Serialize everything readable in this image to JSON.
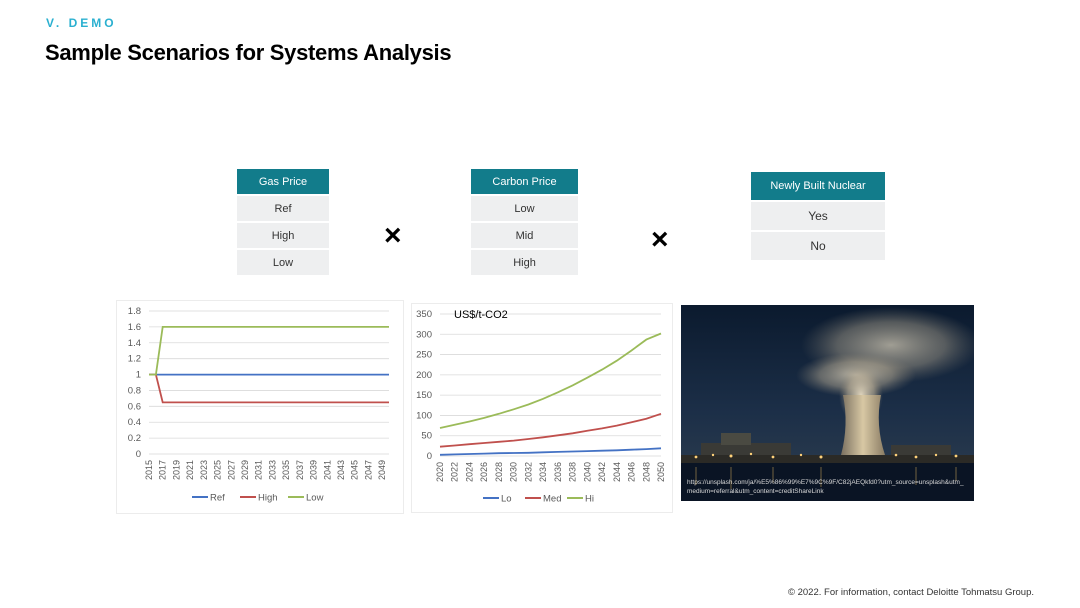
{
  "header": {
    "section": "V. DEMO",
    "title": "Sample Scenarios for Systems Analysis"
  },
  "scenario_tables": [
    {
      "header": "Gas Price",
      "rows": [
        "Ref",
        "High",
        "Low"
      ]
    },
    {
      "header": "Carbon Price",
      "rows": [
        "Low",
        "Mid",
        "High"
      ]
    },
    {
      "header": "Newly Built Nuclear",
      "rows": [
        "Yes",
        "No"
      ]
    }
  ],
  "operators": [
    "×",
    "×"
  ],
  "photo": {
    "credit": "https://unsplash.com/ja/%E5%86%99%E7%9C%9F/C82jAEQkfd0?utm_source=unsplash&utm_medium=referral&utm_content=creditShareLink"
  },
  "footer": "© 2022. For information, contact Deloitte Tohmatsu Group.",
  "chart_data": [
    {
      "type": "line",
      "title": "",
      "x": [
        2015,
        2016,
        2017,
        2018,
        2019,
        2020,
        2021,
        2022,
        2023,
        2024,
        2025,
        2026,
        2027,
        2028,
        2029,
        2030,
        2031,
        2032,
        2033,
        2034,
        2035,
        2036,
        2037,
        2038,
        2039,
        2040,
        2041,
        2042,
        2043,
        2044,
        2045,
        2046,
        2047,
        2048,
        2049,
        2050
      ],
      "x_tick_labels": [
        "2015",
        "2017",
        "2019",
        "2021",
        "2023",
        "2025",
        "2027",
        "2029",
        "2031",
        "2033",
        "2035",
        "2037",
        "2039",
        "2041",
        "2043",
        "2045",
        "2047",
        "2049"
      ],
      "ylim": [
        0,
        1.8
      ],
      "y_ticks": [
        "0",
        "0.2",
        "0.4",
        "0.6",
        "0.8",
        "1",
        "1.2",
        "1.4",
        "1.6",
        "1.8"
      ],
      "grid": true,
      "legend": "bottom",
      "series": [
        {
          "name": "Ref",
          "color": "#4472C4",
          "values": [
            1,
            1,
            1,
            1,
            1,
            1,
            1,
            1,
            1,
            1,
            1,
            1,
            1,
            1,
            1,
            1,
            1,
            1,
            1,
            1,
            1,
            1,
            1,
            1,
            1,
            1,
            1,
            1,
            1,
            1,
            1,
            1,
            1,
            1,
            1,
            1
          ]
        },
        {
          "name": "High",
          "color": "#C0504D",
          "values": [
            1,
            1,
            0.65,
            0.65,
            0.65,
            0.65,
            0.65,
            0.65,
            0.65,
            0.65,
            0.65,
            0.65,
            0.65,
            0.65,
            0.65,
            0.65,
            0.65,
            0.65,
            0.65,
            0.65,
            0.65,
            0.65,
            0.65,
            0.65,
            0.65,
            0.65,
            0.65,
            0.65,
            0.65,
            0.65,
            0.65,
            0.65,
            0.65,
            0.65,
            0.65,
            0.65
          ]
        },
        {
          "name": "Low",
          "color": "#9BBB59",
          "values": [
            1,
            1,
            1.6,
            1.6,
            1.6,
            1.6,
            1.6,
            1.6,
            1.6,
            1.6,
            1.6,
            1.6,
            1.6,
            1.6,
            1.6,
            1.6,
            1.6,
            1.6,
            1.6,
            1.6,
            1.6,
            1.6,
            1.6,
            1.6,
            1.6,
            1.6,
            1.6,
            1.6,
            1.6,
            1.6,
            1.6,
            1.6,
            1.6,
            1.6,
            1.6,
            1.6
          ]
        }
      ]
    },
    {
      "type": "line",
      "title": "US$/t-CO2",
      "x": [
        2020,
        2022,
        2024,
        2026,
        2028,
        2030,
        2032,
        2034,
        2036,
        2038,
        2040,
        2042,
        2044,
        2046,
        2048,
        2050
      ],
      "x_tick_labels": [
        "2020",
        "2022",
        "2024",
        "2026",
        "2028",
        "2030",
        "2032",
        "2034",
        "2036",
        "2038",
        "2040",
        "2042",
        "2044",
        "2046",
        "2048",
        "2050"
      ],
      "ylim": [
        0,
        350
      ],
      "y_ticks": [
        "0",
        "50",
        "100",
        "150",
        "200",
        "250",
        "300",
        "350"
      ],
      "grid": true,
      "legend": "bottom",
      "series": [
        {
          "name": "Lo",
          "color": "#4472C4",
          "values": [
            3,
            4,
            5,
            6,
            7,
            7.5,
            8,
            9,
            10,
            11,
            12,
            13,
            14,
            15.5,
            17,
            19
          ]
        },
        {
          "name": "Med",
          "color": "#C0504D",
          "values": [
            23,
            26,
            29,
            32,
            35,
            38,
            42,
            46,
            51,
            56,
            62,
            68,
            75,
            83,
            92,
            104
          ]
        },
        {
          "name": "Hi",
          "color": "#9BBB59",
          "values": [
            69,
            77,
            85,
            94,
            104,
            115,
            127,
            141,
            157,
            174,
            193,
            213,
            235,
            260,
            287,
            302
          ]
        }
      ]
    }
  ]
}
